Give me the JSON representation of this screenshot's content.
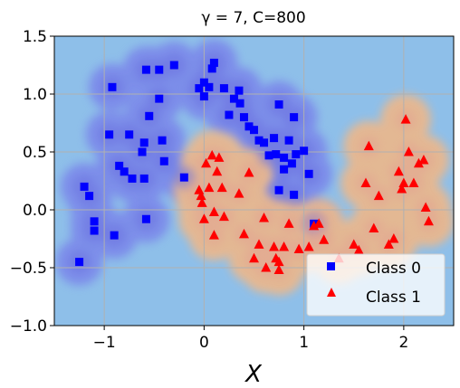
{
  "chart_data": {
    "type": "scatter",
    "title": "γ = 7, C=800",
    "xlabel": "X",
    "ylabel": "",
    "xlim": [
      -1.5,
      2.5
    ],
    "ylim": [
      -1.0,
      1.5
    ],
    "xticks": [
      -1,
      0,
      1,
      2
    ],
    "xtick_labels": [
      "−1",
      "0",
      "1",
      "2"
    ],
    "yticks": [
      -1.0,
      -0.5,
      0.0,
      0.5,
      1.0,
      1.5
    ],
    "ytick_labels": [
      "−1.0",
      "−0.5",
      "0.0",
      "0.5",
      "1.0",
      "1.5"
    ],
    "grid": true,
    "legend_position": "lower-right",
    "colors": {
      "background": "#8ebfe9",
      "class0_region": "#7a86ea",
      "class0_core": "#6c6fe0",
      "class1_region": "#e8b88f",
      "class1_core": "#e39d92",
      "class0_marker": "#0000ff",
      "class1_marker": "#ff0000",
      "grid": "#b0b0b0"
    },
    "series": [
      {
        "name": "Class 0",
        "marker": "square",
        "color": "#0000ff",
        "points": [
          [
            -1.25,
            -0.45
          ],
          [
            -1.2,
            0.2
          ],
          [
            -1.15,
            0.12
          ],
          [
            -1.1,
            -0.1
          ],
          [
            -1.1,
            -0.18
          ],
          [
            -0.95,
            0.65
          ],
          [
            -0.92,
            1.06
          ],
          [
            -0.9,
            -0.22
          ],
          [
            -0.85,
            0.38
          ],
          [
            -0.8,
            0.33
          ],
          [
            -0.75,
            0.65
          ],
          [
            -0.72,
            0.27
          ],
          [
            -0.62,
            0.5
          ],
          [
            -0.6,
            0.58
          ],
          [
            -0.6,
            0.27
          ],
          [
            -0.58,
            -0.08
          ],
          [
            -0.58,
            1.21
          ],
          [
            -0.55,
            0.81
          ],
          [
            -0.45,
            1.21
          ],
          [
            -0.45,
            0.96
          ],
          [
            -0.42,
            0.6
          ],
          [
            -0.4,
            0.42
          ],
          [
            -0.3,
            1.25
          ],
          [
            -0.2,
            0.28
          ],
          [
            -0.05,
            1.05
          ],
          [
            0.0,
            1.1
          ],
          [
            0.0,
            0.98
          ],
          [
            0.05,
            1.06
          ],
          [
            0.08,
            1.22
          ],
          [
            0.1,
            1.27
          ],
          [
            0.2,
            1.05
          ],
          [
            0.25,
            0.82
          ],
          [
            0.3,
            0.96
          ],
          [
            0.35,
            1.03
          ],
          [
            0.36,
            0.92
          ],
          [
            0.4,
            0.8
          ],
          [
            0.45,
            0.72
          ],
          [
            0.5,
            0.69
          ],
          [
            0.55,
            0.6
          ],
          [
            0.6,
            0.58
          ],
          [
            0.65,
            0.47
          ],
          [
            0.7,
            0.62
          ],
          [
            0.72,
            0.48
          ],
          [
            0.75,
            0.91
          ],
          [
            0.75,
            0.17
          ],
          [
            0.8,
            0.45
          ],
          [
            0.8,
            0.35
          ],
          [
            0.85,
            0.6
          ],
          [
            0.88,
            0.4
          ],
          [
            0.9,
            0.8
          ],
          [
            0.9,
            0.13
          ],
          [
            0.92,
            0.48
          ],
          [
            1.0,
            0.51
          ],
          [
            1.05,
            0.31
          ],
          [
            1.1,
            -0.12
          ]
        ]
      },
      {
        "name": "Class 1",
        "marker": "triangle",
        "color": "#ff0000",
        "points": [
          [
            -0.05,
            0.17
          ],
          [
            -0.03,
            0.12
          ],
          [
            -0.02,
            0.06
          ],
          [
            0.0,
            -0.08
          ],
          [
            0.02,
            0.4
          ],
          [
            0.05,
            0.19
          ],
          [
            0.08,
            0.47
          ],
          [
            0.1,
            -0.02
          ],
          [
            0.1,
            -0.22
          ],
          [
            0.13,
            0.33
          ],
          [
            0.15,
            0.45
          ],
          [
            0.18,
            0.19
          ],
          [
            0.2,
            -0.06
          ],
          [
            0.35,
            0.14
          ],
          [
            0.4,
            -0.21
          ],
          [
            0.45,
            0.32
          ],
          [
            0.5,
            -0.42
          ],
          [
            0.55,
            -0.3
          ],
          [
            0.6,
            -0.07
          ],
          [
            0.62,
            -0.5
          ],
          [
            0.7,
            -0.32
          ],
          [
            0.72,
            -0.42
          ],
          [
            0.75,
            -0.52
          ],
          [
            0.75,
            -0.45
          ],
          [
            0.8,
            -0.32
          ],
          [
            0.85,
            -0.12
          ],
          [
            0.95,
            -0.34
          ],
          [
            1.05,
            -0.32
          ],
          [
            1.1,
            -0.14
          ],
          [
            1.15,
            -0.12
          ],
          [
            1.2,
            -0.26
          ],
          [
            1.35,
            -0.42
          ],
          [
            1.5,
            -0.3
          ],
          [
            1.55,
            -0.35
          ],
          [
            1.62,
            0.23
          ],
          [
            1.65,
            0.55
          ],
          [
            1.7,
            -0.16
          ],
          [
            1.75,
            0.12
          ],
          [
            1.85,
            -0.3
          ],
          [
            1.9,
            -0.25
          ],
          [
            1.95,
            0.33
          ],
          [
            1.98,
            0.18
          ],
          [
            2.0,
            0.23
          ],
          [
            2.02,
            0.78
          ],
          [
            2.05,
            0.5
          ],
          [
            2.1,
            0.23
          ],
          [
            2.15,
            0.4
          ],
          [
            2.2,
            0.43
          ],
          [
            2.22,
            0.02
          ],
          [
            2.25,
            -0.1
          ]
        ]
      }
    ]
  }
}
